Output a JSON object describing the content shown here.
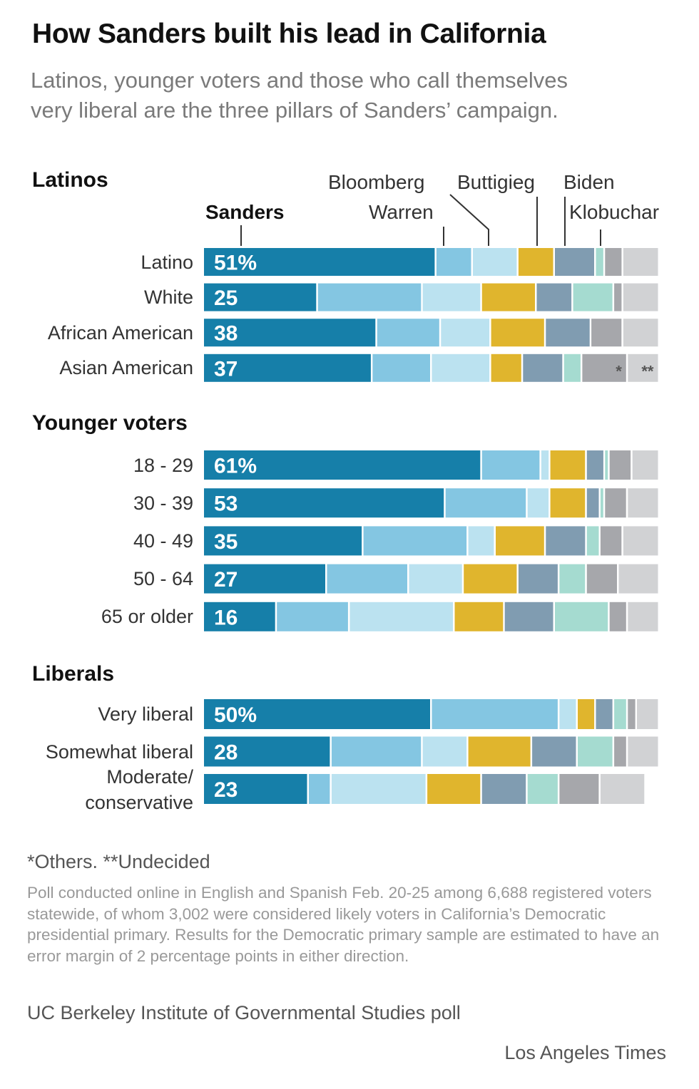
{
  "title": "How Sanders built his lead in California",
  "subtitle_lines": [
    "Latinos, younger voters and those who call themselves",
    "very liberal are the three pillars of Sanders’ campaign."
  ],
  "colors": {
    "Sanders": "#167fa9",
    "Warren": "#84c6e2",
    "Bloomberg": "#bbe2f0",
    "Buttigieg": "#e0b52d",
    "Biden": "#809cb1",
    "Klobuchar": "#a5dbd0",
    "Others": "#a6a7ab",
    "Undecided": "#d1d2d4"
  },
  "footnote": "*Others. **Undecided",
  "methodology": "Poll conducted online in English and Spanish Feb. 20-25 among 6,688 registered voters statewide, of whom 3,002  were considered likely voters in California’s Democratic presidential primary. Results for the Democratic primary sample are estimated to have an error margin of 2 percentage points in either direction.",
  "source": "UC Berkeley Institute of Governmental Studies poll",
  "credit": "Los Angeles Times",
  "chart_data": {
    "type": "bar",
    "orientation": "horizontal-stacked",
    "title": "How Sanders built his lead in California",
    "xlabel": "",
    "ylabel": "",
    "unit": "%",
    "xlim": [
      0,
      100
    ],
    "grid": false,
    "legend": {
      "placement": "top (annotated above first bar)",
      "entries": [
        "Sanders",
        "Warren",
        "Bloomberg",
        "Buttigieg",
        "Biden",
        "Klobuchar"
      ]
    },
    "series_order": [
      "Sanders",
      "Warren",
      "Bloomberg",
      "Buttigieg",
      "Biden",
      "Klobuchar",
      "Others",
      "Undecided"
    ],
    "groups": [
      {
        "name": "Latinos",
        "rows": [
          {
            "label": "Latino",
            "display": "51%",
            "values": [
              51,
              8,
              10,
              8,
              9,
              2,
              4,
              8
            ]
          },
          {
            "label": "White",
            "display": "25",
            "values": [
              25,
              23,
              13,
              12,
              8,
              9,
              2,
              8
            ]
          },
          {
            "label": "African American",
            "display": "38",
            "values": [
              38,
              14,
              11,
              12,
              10,
              0,
              7,
              8
            ]
          },
          {
            "label": "Asian American",
            "display": "37",
            "values": [
              37,
              13,
              13,
              7,
              9,
              4,
              10,
              7
            ],
            "segment_marks": {
              "Others": "*",
              "Undecided": "**"
            }
          }
        ]
      },
      {
        "name": "Younger voters",
        "rows": [
          {
            "label": "18 - 29",
            "display": "61%",
            "values": [
              61,
              13,
              2,
              8,
              4,
              1,
              5,
              6
            ]
          },
          {
            "label": "30 - 39",
            "display": "53",
            "values": [
              53,
              18,
              5,
              8,
              3,
              1,
              5,
              7
            ]
          },
          {
            "label": "40 - 49",
            "display": "35",
            "values": [
              35,
              23,
              6,
              11,
              9,
              3,
              5,
              8
            ]
          },
          {
            "label": "50 - 64",
            "display": "27",
            "values": [
              27,
              18,
              12,
              12,
              9,
              6,
              7,
              9
            ]
          },
          {
            "label": "65 or older",
            "display": "16",
            "values": [
              16,
              16,
              23,
              11,
              11,
              12,
              4,
              7
            ]
          }
        ]
      },
      {
        "name": "Liberals",
        "rows": [
          {
            "label": "Very liberal",
            "display": "50%",
            "values": [
              50,
              28,
              4,
              4,
              4,
              3,
              2,
              5
            ]
          },
          {
            "label": "Somewhat liberal",
            "display": "28",
            "values": [
              28,
              20,
              10,
              14,
              10,
              8,
              3,
              7
            ]
          },
          {
            "label": "Moderate/\nconservative",
            "display": "23",
            "values": [
              23,
              5,
              21,
              12,
              10,
              7,
              9,
              10
            ]
          }
        ]
      }
    ],
    "annotations": [
      "*Others. **Undecided"
    ]
  }
}
